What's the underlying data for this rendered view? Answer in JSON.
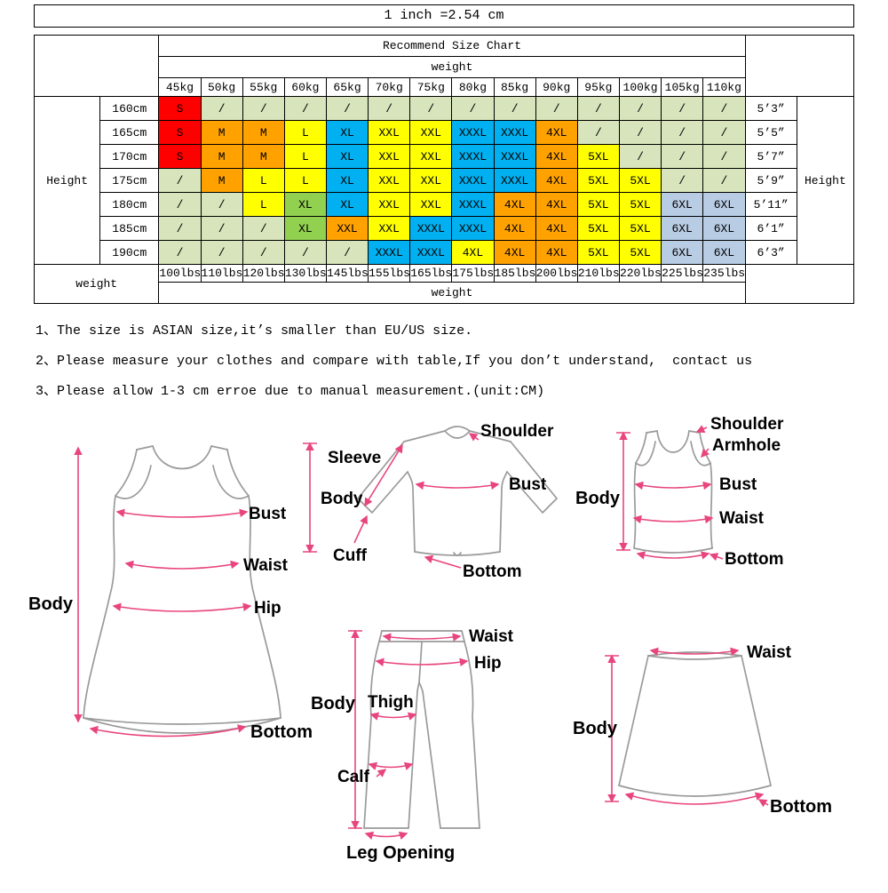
{
  "header": {
    "title": "1 inch =2.54 cm"
  },
  "size_chart": {
    "title": "Recommend Size Chart",
    "weight_label": "weight",
    "height_label": "Height",
    "weights_kg": [
      "45kg",
      "50kg",
      "55kg",
      "60kg",
      "65kg",
      "70kg",
      "75kg",
      "80kg",
      "85kg",
      "90kg",
      "95kg",
      "100kg",
      "105kg",
      "110kg"
    ],
    "weights_lbs": [
      "100lbs",
      "110lbs",
      "120lbs",
      "130lbs",
      "145lbs",
      "155lbs",
      "165lbs",
      "175lbs",
      "185lbs",
      "200lbs",
      "210lbs",
      "220lbs",
      "225lbs",
      "235lbs"
    ],
    "colors": {
      "red": "#ff0000",
      "orange": "#ffa200",
      "yellow": "#ffff00",
      "blue": "#00b0f0",
      "lime": "#92d050",
      "pale_green": "#d7e4bc",
      "pale_blue": "#b8cce4"
    },
    "rows": [
      {
        "height_cm": "160cm",
        "height_ft": "5’3”",
        "cells": [
          {
            "t": "S",
            "c": "red"
          },
          {
            "t": "/",
            "c": "pale_green"
          },
          {
            "t": "/",
            "c": "pale_green"
          },
          {
            "t": "/",
            "c": "pale_green"
          },
          {
            "t": "/",
            "c": "pale_green"
          },
          {
            "t": "/",
            "c": "pale_green"
          },
          {
            "t": "/",
            "c": "pale_green"
          },
          {
            "t": "/",
            "c": "pale_green"
          },
          {
            "t": "/",
            "c": "pale_green"
          },
          {
            "t": "/",
            "c": "pale_green"
          },
          {
            "t": "/",
            "c": "pale_green"
          },
          {
            "t": "/",
            "c": "pale_green"
          },
          {
            "t": "/",
            "c": "pale_green"
          },
          {
            "t": "/",
            "c": "pale_green"
          }
        ]
      },
      {
        "height_cm": "165cm",
        "height_ft": "5’5”",
        "cells": [
          {
            "t": "S",
            "c": "red"
          },
          {
            "t": "M",
            "c": "orange"
          },
          {
            "t": "M",
            "c": "orange"
          },
          {
            "t": "L",
            "c": "yellow"
          },
          {
            "t": "XL",
            "c": "blue"
          },
          {
            "t": "XXL",
            "c": "yellow"
          },
          {
            "t": "XXL",
            "c": "yellow"
          },
          {
            "t": "XXXL",
            "c": "blue"
          },
          {
            "t": "XXXL",
            "c": "blue"
          },
          {
            "t": "4XL",
            "c": "orange"
          },
          {
            "t": "/",
            "c": "pale_green"
          },
          {
            "t": "/",
            "c": "pale_green"
          },
          {
            "t": "/",
            "c": "pale_green"
          },
          {
            "t": "/",
            "c": "pale_green"
          }
        ]
      },
      {
        "height_cm": "170cm",
        "height_ft": "5’7”",
        "cells": [
          {
            "t": "S",
            "c": "red"
          },
          {
            "t": "M",
            "c": "orange"
          },
          {
            "t": "M",
            "c": "orange"
          },
          {
            "t": "L",
            "c": "yellow"
          },
          {
            "t": "XL",
            "c": "blue"
          },
          {
            "t": "XXL",
            "c": "yellow"
          },
          {
            "t": "XXL",
            "c": "yellow"
          },
          {
            "t": "XXXL",
            "c": "blue"
          },
          {
            "t": "XXXL",
            "c": "blue"
          },
          {
            "t": "4XL",
            "c": "orange"
          },
          {
            "t": "5XL",
            "c": "yellow"
          },
          {
            "t": "/",
            "c": "pale_green"
          },
          {
            "t": "/",
            "c": "pale_green"
          },
          {
            "t": "/",
            "c": "pale_green"
          }
        ]
      },
      {
        "height_cm": "175cm",
        "height_ft": "5’9”",
        "cells": [
          {
            "t": "/",
            "c": "pale_green"
          },
          {
            "t": "M",
            "c": "orange"
          },
          {
            "t": "L",
            "c": "yellow"
          },
          {
            "t": "L",
            "c": "yellow"
          },
          {
            "t": "XL",
            "c": "blue"
          },
          {
            "t": "XXL",
            "c": "yellow"
          },
          {
            "t": "XXL",
            "c": "yellow"
          },
          {
            "t": "XXXL",
            "c": "blue"
          },
          {
            "t": "XXXL",
            "c": "blue"
          },
          {
            "t": "4XL",
            "c": "orange"
          },
          {
            "t": "5XL",
            "c": "yellow"
          },
          {
            "t": "5XL",
            "c": "yellow"
          },
          {
            "t": "/",
            "c": "pale_green"
          },
          {
            "t": "/",
            "c": "pale_green"
          }
        ]
      },
      {
        "height_cm": "180cm",
        "height_ft": "5’11”",
        "cells": [
          {
            "t": "/",
            "c": "pale_green"
          },
          {
            "t": "/",
            "c": "pale_green"
          },
          {
            "t": "L",
            "c": "yellow"
          },
          {
            "t": "XL",
            "c": "lime"
          },
          {
            "t": "XL",
            "c": "blue"
          },
          {
            "t": "XXL",
            "c": "yellow"
          },
          {
            "t": "XXL",
            "c": "yellow"
          },
          {
            "t": "XXXL",
            "c": "blue"
          },
          {
            "t": "4XL",
            "c": "orange"
          },
          {
            "t": "4XL",
            "c": "orange"
          },
          {
            "t": "5XL",
            "c": "yellow"
          },
          {
            "t": "5XL",
            "c": "yellow"
          },
          {
            "t": "6XL",
            "c": "pale_blue"
          },
          {
            "t": "6XL",
            "c": "pale_blue"
          }
        ]
      },
      {
        "height_cm": "185cm",
        "height_ft": "6’1”",
        "cells": [
          {
            "t": "/",
            "c": "pale_green"
          },
          {
            "t": "/",
            "c": "pale_green"
          },
          {
            "t": "/",
            "c": "pale_green"
          },
          {
            "t": "XL",
            "c": "lime"
          },
          {
            "t": "XXL",
            "c": "orange"
          },
          {
            "t": "XXL",
            "c": "yellow"
          },
          {
            "t": "XXXL",
            "c": "blue"
          },
          {
            "t": "XXXL",
            "c": "blue"
          },
          {
            "t": "4XL",
            "c": "orange"
          },
          {
            "t": "4XL",
            "c": "orange"
          },
          {
            "t": "5XL",
            "c": "yellow"
          },
          {
            "t": "5XL",
            "c": "yellow"
          },
          {
            "t": "6XL",
            "c": "pale_blue"
          },
          {
            "t": "6XL",
            "c": "pale_blue"
          }
        ]
      },
      {
        "height_cm": "190cm",
        "height_ft": "6’3”",
        "cells": [
          {
            "t": "/",
            "c": "pale_green"
          },
          {
            "t": "/",
            "c": "pale_green"
          },
          {
            "t": "/",
            "c": "pale_green"
          },
          {
            "t": "/",
            "c": "pale_green"
          },
          {
            "t": "/",
            "c": "pale_green"
          },
          {
            "t": "XXXL",
            "c": "blue"
          },
          {
            "t": "XXXL",
            "c": "blue"
          },
          {
            "t": "4XL",
            "c": "yellow"
          },
          {
            "t": "4XL",
            "c": "orange"
          },
          {
            "t": "4XL",
            "c": "orange"
          },
          {
            "t": "5XL",
            "c": "yellow"
          },
          {
            "t": "5XL",
            "c": "yellow"
          },
          {
            "t": "6XL",
            "c": "pale_blue"
          },
          {
            "t": "6XL",
            "c": "pale_blue"
          }
        ]
      }
    ]
  },
  "notes": [
    "1、The size is ASIAN size,it’s smaller than EU/US size.",
    "2、Please measure your clothes and compare with table,If you don’t understand,  contact us",
    "3、Please allow 1-3 cm erroe due to manual measurement.(unit:CM)"
  ],
  "diagrams": {
    "measure_color": "#e8457f",
    "outline_color": "#9a9a9a",
    "dress": {
      "labels": {
        "body": "Body",
        "bust": "Bust",
        "waist": "Waist",
        "hip": "Hip",
        "bottom": "Bottom"
      }
    },
    "shirt": {
      "labels": {
        "shoulder": "Shoulder",
        "sleeve": "Sleeve",
        "body": "Body",
        "bust": "Bust",
        "cuff": "Cuff",
        "bottom": "Bottom"
      }
    },
    "vest": {
      "labels": {
        "shoulder": "Shoulder",
        "armhole": "Armhole",
        "body": "Body",
        "bust": "Bust",
        "waist": "Waist",
        "bottom": "Bottom"
      }
    },
    "pants": {
      "labels": {
        "waist": "Waist",
        "hip": "Hip",
        "body": "Body",
        "thigh": "Thigh",
        "calf": "Calf",
        "leg_opening": "Leg Opening"
      }
    },
    "skirt": {
      "labels": {
        "waist": "Waist",
        "body": "Body",
        "bottom": "Bottom"
      }
    }
  }
}
